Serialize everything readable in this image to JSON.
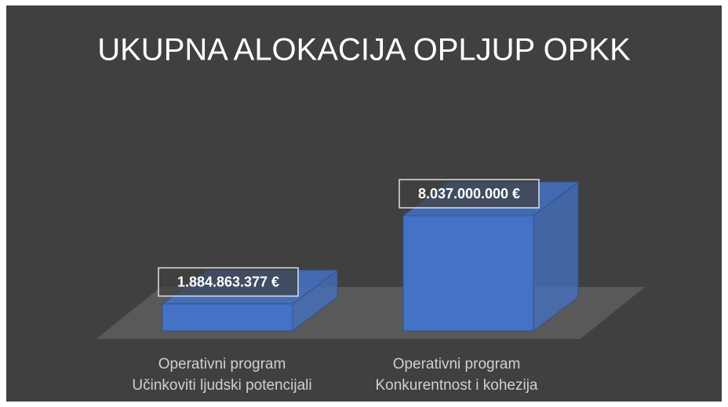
{
  "chart_data": {
    "type": "bar3d",
    "title": "UKUPNA ALOKACIJA OPLJUP OPKK",
    "categories": [
      "Operativni program\nUčinkoviti ljudski potencijali",
      "Operativni program\nKonkurentnost i kohezija"
    ],
    "values": [
      1884863377,
      8037000000
    ],
    "value_labels": [
      "1.884.863.377 €",
      "8.037.000.000 €"
    ],
    "color": "#4472c4"
  }
}
